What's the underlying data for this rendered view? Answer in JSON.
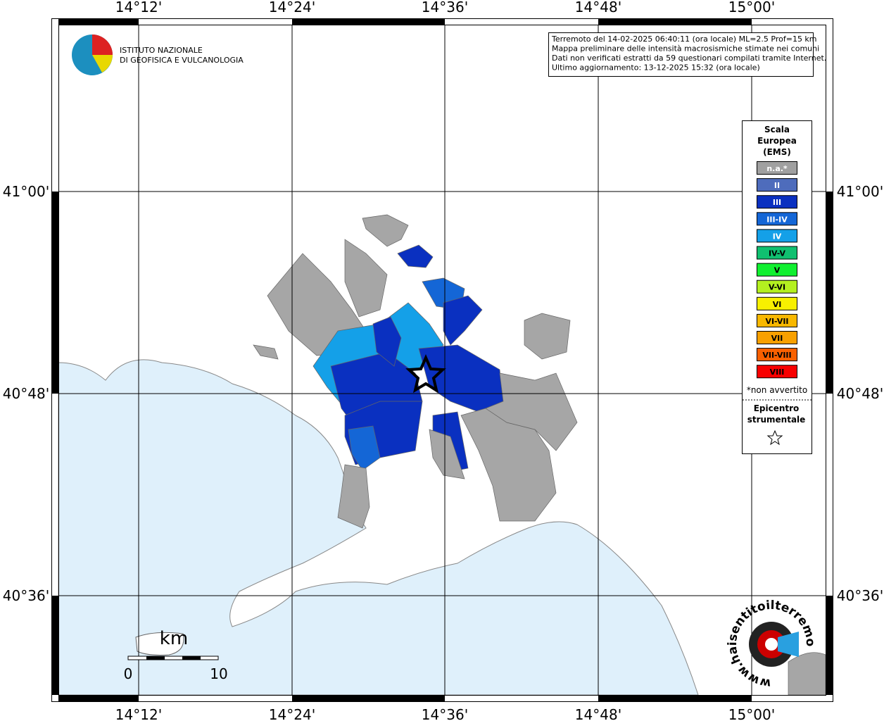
{
  "map": {
    "lon_labels": [
      "14°12'",
      "14°24'",
      "14°36'",
      "14°48'",
      "15°00'"
    ],
    "lat_labels": [
      "41°00'",
      "40°48'",
      "40°36'"
    ],
    "info": [
      "Terremoto del 14-02-2025 06:40:11 (ora locale) ML=2.5 Prof=15 km",
      "Mappa preliminare delle intensità macrosismiche stimate nei comuni",
      "Dati non verificati estratti da 59 questionari compilati tramite Internet.",
      "Ultimo aggiornamento: 13-12-2025 15:32 (ora locale)"
    ],
    "logo": [
      "ISTITUTO NAZIONALE",
      "DI GEOFISICA E VULCANOLOGIA"
    ],
    "legend": {
      "title": [
        "Scala",
        "Europea",
        "(EMS)"
      ],
      "classes": [
        {
          "label": "n.a.*",
          "color": "#a0a0a0"
        },
        {
          "label": "II",
          "color": "#4e6cbc"
        },
        {
          "label": "III",
          "color": "#0a30c0"
        },
        {
          "label": "III-IV",
          "color": "#1466d6"
        },
        {
          "label": "IV",
          "color": "#14a0e8"
        },
        {
          "label": "IV-V",
          "color": "#10c070"
        },
        {
          "label": "V",
          "color": "#10f030"
        },
        {
          "label": "V-VI",
          "color": "#b4f020"
        },
        {
          "label": "VI",
          "color": "#f8f000"
        },
        {
          "label": "VI-VII",
          "color": "#f8b800"
        },
        {
          "label": "VII",
          "color": "#f8a000"
        },
        {
          "label": "VII-VIII",
          "color": "#f86000"
        },
        {
          "label": "VIII",
          "color": "#f80000"
        }
      ],
      "note": "*non avvertito",
      "epicenter_title": [
        "Epicentro",
        "strumentale"
      ]
    },
    "scale": {
      "unit": "km",
      "ticks": [
        "0",
        "10"
      ]
    },
    "site_logo": "www.haisentitoilterremoto.it"
  }
}
